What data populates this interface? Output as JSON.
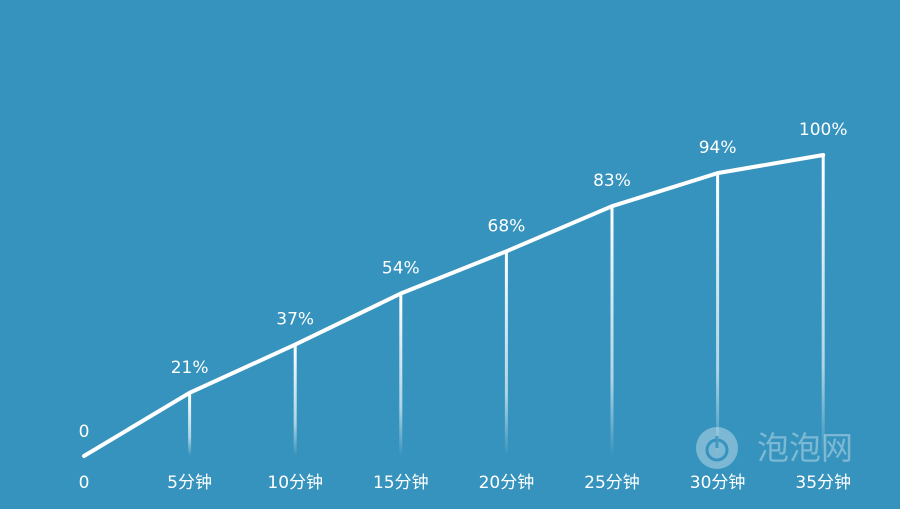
{
  "chart_data": {
    "type": "line",
    "x_labels": [
      "0",
      "5分钟",
      "10分钟",
      "15分钟",
      "20分钟",
      "25分钟",
      "30分钟",
      "35分钟"
    ],
    "x": [
      0,
      5,
      10,
      15,
      20,
      25,
      30,
      35
    ],
    "values": [
      0,
      21,
      37,
      54,
      68,
      83,
      94,
      100
    ],
    "data_labels": [
      "0",
      "21%",
      "37%",
      "54%",
      "68%",
      "83%",
      "94%",
      "100%"
    ],
    "ylim": [
      0,
      100
    ],
    "grid": false,
    "colors": {
      "background": "#3693bd",
      "line": "#ffffff"
    }
  },
  "watermark": {
    "text": "泡泡网",
    "icon": "power-icon"
  }
}
